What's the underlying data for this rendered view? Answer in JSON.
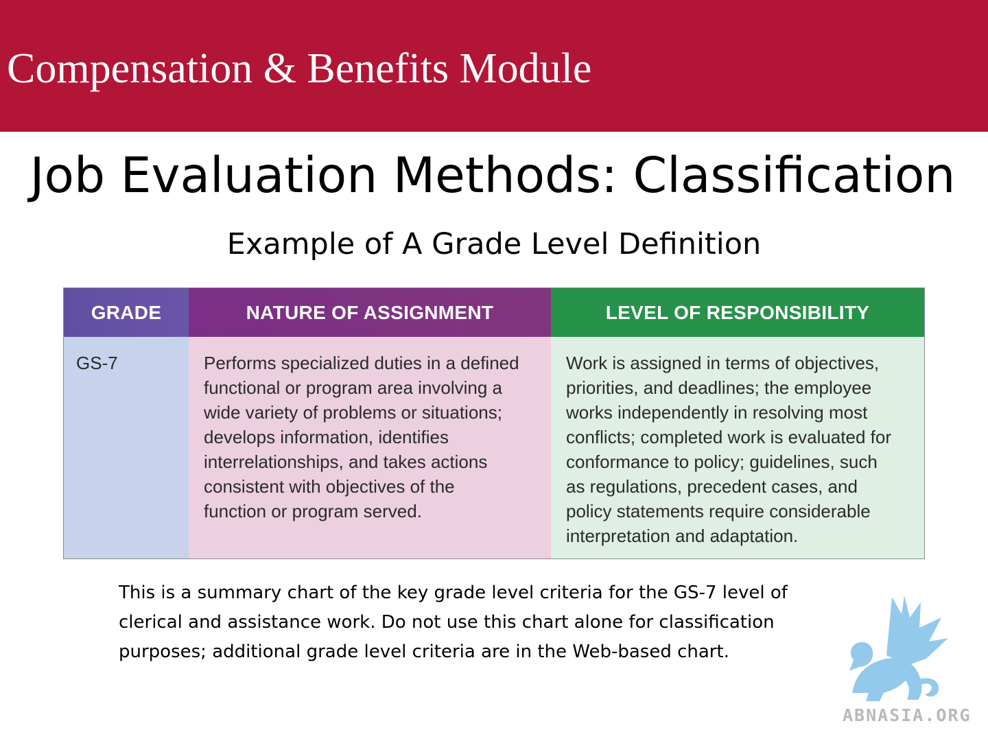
{
  "header": {
    "module_title": "Compensation & Benefits Module"
  },
  "slide": {
    "title": "Job Evaluation Methods: Classification",
    "subtitle": "Example of A Grade Level Definition"
  },
  "table": {
    "headers": [
      "GRADE",
      "NATURE OF ASSIGNMENT",
      "LEVEL OF RESPONSIBILITY"
    ],
    "grade": "GS-7",
    "nature_lines": [
      "Performs specialized duties in a defined",
      "functional or program area involving a",
      "wide variety of problems or situations;",
      "develops information, identifies",
      "interrelationships, and takes actions",
      "consistent with objectives of the",
      "function or program served."
    ],
    "level_lines": [
      "Work is assigned in terms of objectives,",
      "priorities, and deadlines; the employee",
      "works independently in resolving most",
      "conflicts; completed work is evaluated for",
      "conformance to policy; guidelines, such",
      "as regulations, precedent cases, and",
      "policy statements require considerable",
      "interpretation and adaptation."
    ],
    "colors": {
      "grade_header": "#5f4fa3",
      "nature_header": "#7b2f86",
      "level_header": "#27924a",
      "grade_cell": "#c7d2ec",
      "nature_cell": "#ecd0df",
      "level_cell": "#e0efe3"
    }
  },
  "caption": {
    "lines": [
      "This is a summary chart of the key grade level criteria for the GS-7 level of",
      "clerical and assistance work. Do not use this chart alone for classification",
      "purposes; additional grade level criteria are in the Web-based chart."
    ]
  },
  "watermark": {
    "icon": "griffin-logo-icon",
    "text": "ABNASIA.ORG"
  },
  "theme": {
    "banner_color": "#b31536",
    "logo_color": "#8ec8ec"
  }
}
